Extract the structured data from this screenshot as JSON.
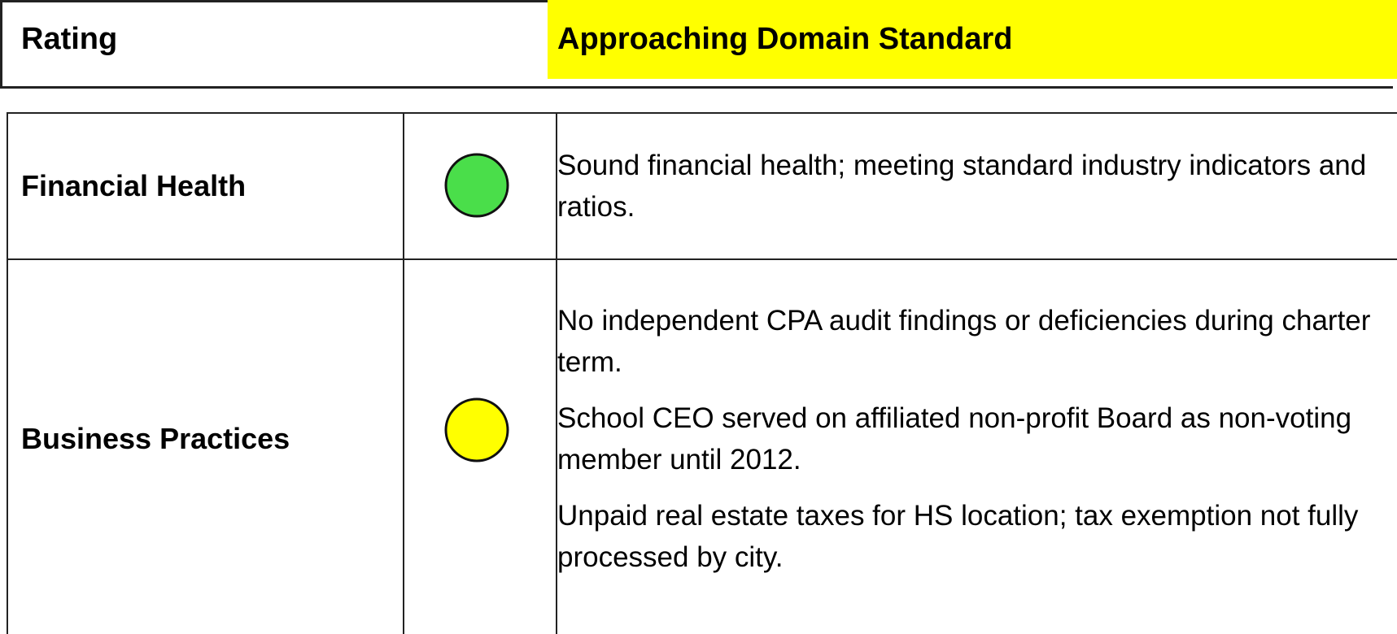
{
  "header": {
    "label": "Rating",
    "value": "Approaching Domain Standard",
    "value_color": "#ffff00"
  },
  "table": {
    "rows": [
      {
        "name": "Financial Health",
        "indicator_color": "#4ade4a",
        "notes": [
          "Sound financial health; meeting standard industry indicators and ratios."
        ]
      },
      {
        "name": "Business Practices",
        "indicator_color": "#ffff00",
        "notes": [
          "No independent CPA audit findings or deficiencies during charter term.",
          "School CEO served on affiliated non-profit Board as non-voting member until 2012.",
          "Unpaid real estate taxes for HS location; tax exemption not fully processed by city."
        ]
      }
    ]
  }
}
